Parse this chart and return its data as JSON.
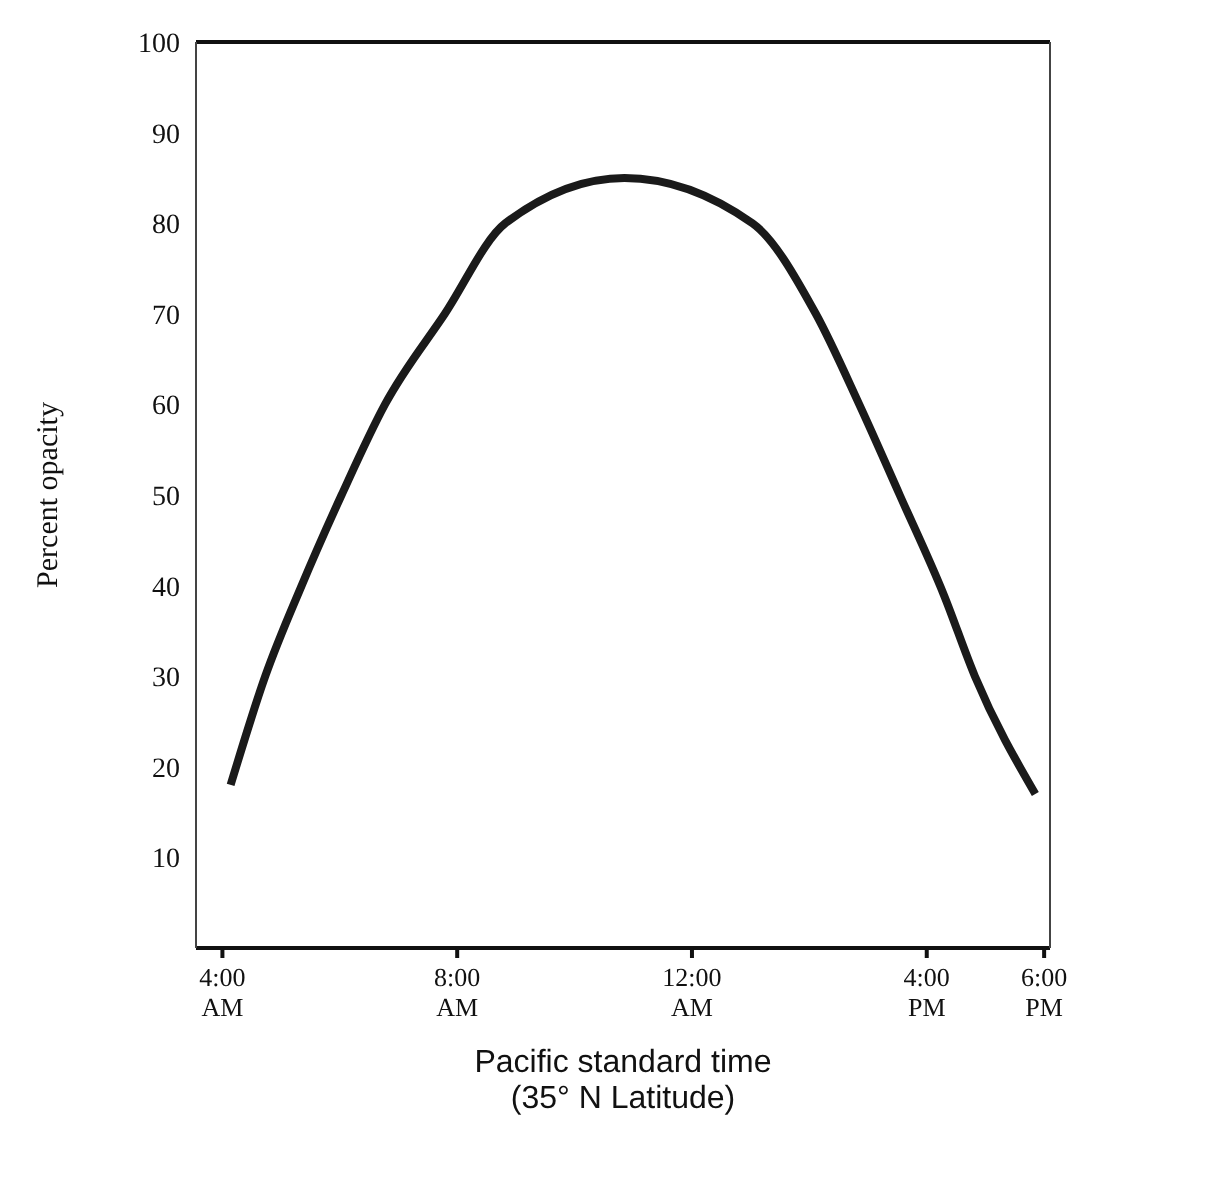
{
  "chart_data": {
    "type": "line",
    "xlabel": "Pacific standard time\n(35° N Latitude)",
    "ylabel": "Percent opacity",
    "x": [
      4.14,
      4.73,
      5.35,
      6.03,
      6.77,
      7.79,
      8.82,
      10.85,
      13.03,
      14.11,
      14.85,
      15.54,
      16.29,
      16.82,
      17.85
    ],
    "series": [
      {
        "color": "#1a1a1a",
        "values": [
          18,
          30,
          40,
          50,
          60,
          70,
          80,
          85,
          80,
          70,
          60,
          50,
          39,
          30,
          17
        ]
      }
    ],
    "xlim": [
      3.55,
      18.1
    ],
    "xticks": [
      {
        "value": 4,
        "label": "4:00\nAM"
      },
      {
        "value": 8,
        "label": "8:00\nAM"
      },
      {
        "value": 12,
        "label": "12:00\nAM"
      },
      {
        "value": 16,
        "label": "4:00\nPM"
      },
      {
        "value": 18,
        "label": "6:00\nPM"
      }
    ],
    "ylim": [
      0,
      100
    ],
    "yticks": [
      10,
      20,
      30,
      40,
      50,
      60,
      70,
      80,
      90,
      100
    ],
    "grid": false,
    "legend": false,
    "marker": "none",
    "line_style": "solid"
  }
}
